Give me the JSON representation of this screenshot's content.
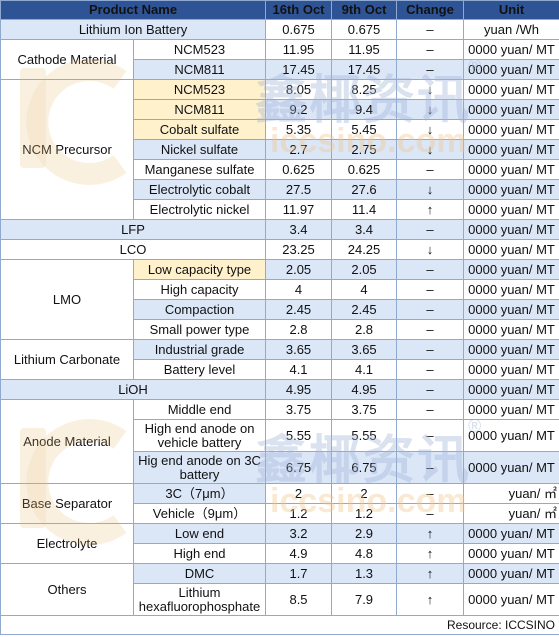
{
  "header": {
    "name": "Product Name",
    "d1": "16th Oct",
    "d2": "9th Oct",
    "change": "Change",
    "unit": "Unit"
  },
  "rows": {
    "lib": {
      "name": "Lithium Ion Battery",
      "v1": "0.675",
      "v2": "0.675",
      "chg": "–",
      "unit": "yuan /Wh"
    },
    "cat_group": "Cathode Material",
    "cat523": {
      "sub": "NCM523",
      "v1": "11.95",
      "v2": "11.95",
      "chg": "–",
      "unit": "0000 yuan/ MT"
    },
    "cat811": {
      "sub": "NCM811",
      "v1": "17.45",
      "v2": "17.45",
      "chg": "–",
      "unit": "0000 yuan/ MT"
    },
    "pre_group": "NCM Precursor",
    "pre523": {
      "sub": "NCM523",
      "v1": "8.05",
      "v2": "8.25",
      "chg": "↓",
      "unit": "0000 yuan/ MT"
    },
    "pre811": {
      "sub": "NCM811",
      "v1": "9.2",
      "v2": "9.4",
      "chg": "↓",
      "unit": "0000 yuan/ MT"
    },
    "cobs": {
      "sub": "Cobalt sulfate",
      "v1": "5.35",
      "v2": "5.45",
      "chg": "↓",
      "unit": "0000 yuan/ MT"
    },
    "nis": {
      "sub": "Nickel sulfate",
      "v1": "2.7",
      "v2": "2.75",
      "chg": "↓",
      "unit": "0000 yuan/ MT"
    },
    "mns": {
      "sub": "Manganese sulfate",
      "v1": "0.625",
      "v2": "0.625",
      "chg": "–",
      "unit": "0000 yuan/ MT"
    },
    "ecob": {
      "sub": "Electrolytic cobalt",
      "v1": "27.5",
      "v2": "27.6",
      "chg": "↓",
      "unit": "0000 yuan/ MT"
    },
    "enic": {
      "sub": "Electrolytic nickel",
      "v1": "11.97",
      "v2": "11.4",
      "chg": "↑",
      "unit": "0000 yuan/ MT"
    },
    "lfp": {
      "name": "LFP",
      "v1": "3.4",
      "v2": "3.4",
      "chg": "–",
      "unit": "0000 yuan/ MT"
    },
    "lco": {
      "name": "LCO",
      "v1": "23.25",
      "v2": "24.25",
      "chg": "↓",
      "unit": "0000 yuan/ MT"
    },
    "lmo_group": "LMO",
    "lmo1": {
      "sub": "Low capacity type",
      "v1": "2.05",
      "v2": "2.05",
      "chg": "–",
      "unit": "0000 yuan/ MT"
    },
    "lmo2": {
      "sub": "High capacity",
      "v1": "4",
      "v2": "4",
      "chg": "–",
      "unit": "0000 yuan/ MT"
    },
    "lmo3": {
      "sub": "Compaction",
      "v1": "2.45",
      "v2": "2.45",
      "chg": "–",
      "unit": "0000 yuan/ MT"
    },
    "lmo4": {
      "sub": "Small power type",
      "v1": "2.8",
      "v2": "2.8",
      "chg": "–",
      "unit": "0000 yuan/ MT"
    },
    "lc_group": "Lithium Carbonate",
    "lc1": {
      "sub": "Industrial grade",
      "v1": "3.65",
      "v2": "3.65",
      "chg": "–",
      "unit": "0000 yuan/ MT"
    },
    "lc2": {
      "sub": "Battery level",
      "v1": "4.1",
      "v2": "4.1",
      "chg": "–",
      "unit": "0000 yuan/ MT"
    },
    "lioh": {
      "name": "LiOH",
      "v1": "4.95",
      "v2": "4.95",
      "chg": "–",
      "unit": "0000 yuan/ MT"
    },
    "an_group": "Anode Material",
    "an1": {
      "sub": "Middle end",
      "v1": "3.75",
      "v2": "3.75",
      "chg": "–",
      "unit": "0000 yuan/ MT"
    },
    "an2": {
      "sub": "High end anode on vehicle battery",
      "v1": "5.55",
      "v2": "5.55",
      "chg": "–",
      "unit": "0000 yuan/ MT"
    },
    "an3": {
      "sub": "Hig end anode on 3C battery",
      "v1": "6.75",
      "v2": "6.75",
      "chg": "–",
      "unit": "0000 yuan/ MT"
    },
    "sep_group": "Base Separator",
    "sep1": {
      "sub": "3C（7μm）",
      "v1": "2",
      "v2": "2",
      "chg": "–",
      "unit": "yuan/ ㎡"
    },
    "sep2": {
      "sub": "Vehicle（9μm）",
      "v1": "1.2",
      "v2": "1.2",
      "chg": "–",
      "unit": "yuan/ ㎡"
    },
    "el_group": "Electrolyte",
    "el1": {
      "sub": "Low end",
      "v1": "3.2",
      "v2": "2.9",
      "chg": "↑",
      "unit": "0000 yuan/ MT"
    },
    "el2": {
      "sub": "High end",
      "v1": "4.9",
      "v2": "4.8",
      "chg": "↑",
      "unit": "0000 yuan/ MT"
    },
    "ot_group": "Others",
    "ot1": {
      "sub": "DMC",
      "v1": "1.7",
      "v2": "1.3",
      "chg": "↑",
      "unit": "0000 yuan/ MT"
    },
    "ot2": {
      "sub": "Lithium hexafluorophosphate",
      "v1": "8.5",
      "v2": "7.9",
      "chg": "↑",
      "unit": "0000 yuan/ MT"
    }
  },
  "footer": "Resource: ICCSINO",
  "watermark": {
    "cn": "鑫椰资讯",
    "url": "iccsino.com",
    "mark": "®"
  },
  "colors": {
    "header": "#2f5496",
    "blue_cell": "#dbe6f7",
    "yellow_cell": "#fff1cc",
    "down": "#1a9e3a",
    "up": "#e02020"
  }
}
